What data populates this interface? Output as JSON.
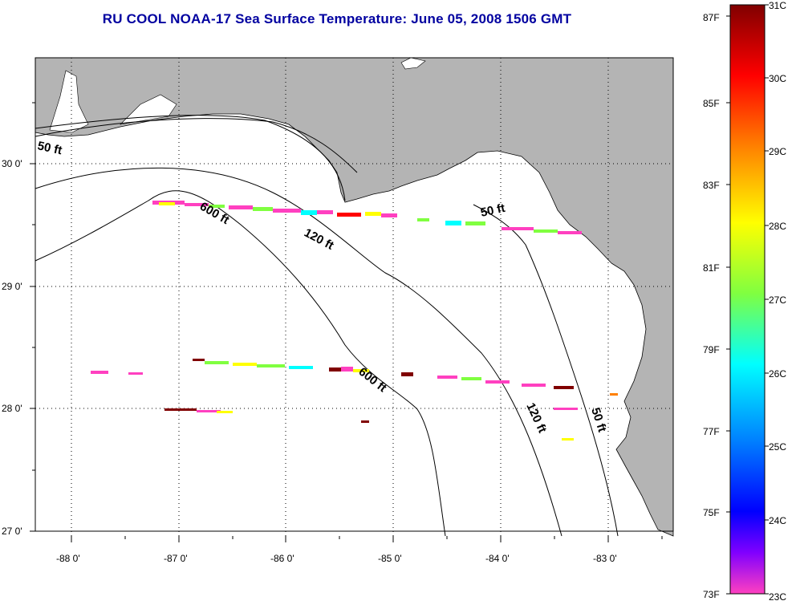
{
  "title": "RU COOL  NOAA-17  Sea Surface Temperature:  June 05, 2008 1506 GMT",
  "map": {
    "lat_labels": [
      "30 0'",
      "29 0'",
      "28 0'",
      "27 0'"
    ],
    "lon_labels": [
      "-88 0'",
      "-87 0'",
      "-86 0'",
      "-85 0'",
      "-84 0'",
      "-83 0'"
    ],
    "depth_labels": [
      "50 ft",
      "600 ft",
      "120 ft",
      "50 ft",
      "600 ft",
      "120 ft",
      "50 ft"
    ],
    "land_color": "#b4b4b4",
    "water_color": "#ffffff"
  },
  "colorbar": {
    "f_labels": [
      "87F",
      "85F",
      "83F",
      "81F",
      "79F",
      "77F",
      "75F",
      "73F"
    ],
    "c_labels": [
      "31C",
      "30C",
      "29C",
      "28C",
      "27C",
      "26C",
      "25C",
      "24C",
      "23C"
    ],
    "colors": [
      "#800000",
      "#ff0000",
      "#ff8000",
      "#ffff00",
      "#80ff40",
      "#00ffff",
      "#0080ff",
      "#0000ff",
      "#8000ff",
      "#ff40c0"
    ]
  }
}
